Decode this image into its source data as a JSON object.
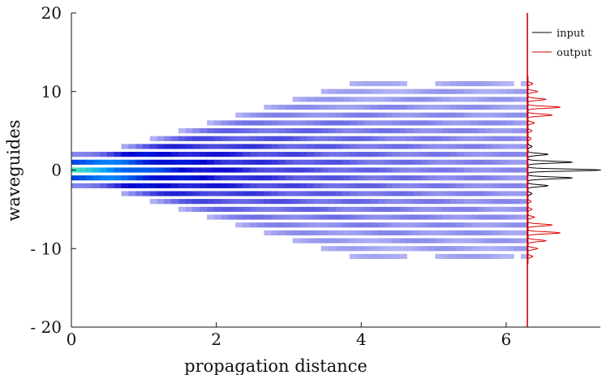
{
  "chart_data": {
    "type": "heatmap",
    "title": "",
    "xlabel": "propagation distance",
    "ylabel": "waveguides",
    "xlim": [
      0,
      7.3
    ],
    "ylim": [
      -20,
      20
    ],
    "x_ticks": [
      {
        "value": 0,
        "label": "0"
      },
      {
        "value": 2,
        "label": "2"
      },
      {
        "value": 4,
        "label": "4"
      },
      {
        "value": 6,
        "label": "6"
      }
    ],
    "y_ticks": [
      {
        "value": 20,
        "label": "20"
      },
      {
        "value": 10,
        "label": "10"
      },
      {
        "value": 0,
        "label": "0"
      },
      {
        "value": -10,
        "label": "- 10"
      },
      {
        "value": -20,
        "label": "- 20"
      }
    ],
    "heatmap": {
      "waveguide_range": [
        -11,
        11
      ],
      "distance_range": [
        0,
        6.3
      ],
      "colormap": [
        "#ffffff",
        "#c8c8f8",
        "#0000d0",
        "#00a0ff",
        "#40e0c0",
        "#f0f000",
        "#ff2020"
      ],
      "peak_intensity": 1.0
    },
    "output_position": 6.3,
    "series": [
      {
        "name": "input",
        "color": "#000000",
        "profile": [
          {
            "waveguide": -3,
            "amplitude": 0.05
          },
          {
            "waveguide": -2,
            "amplitude": 0.25
          },
          {
            "waveguide": -1,
            "amplitude": 0.55
          },
          {
            "waveguide": 0,
            "amplitude": 0.9
          },
          {
            "waveguide": 1,
            "amplitude": 0.55
          },
          {
            "waveguide": 2,
            "amplitude": 0.25
          },
          {
            "waveguide": 3,
            "amplitude": 0.05
          }
        ]
      },
      {
        "name": "output",
        "color": "#e00000",
        "profile": [
          {
            "waveguide": -11,
            "amplitude": 0.06
          },
          {
            "waveguide": -10,
            "amplitude": 0.12
          },
          {
            "waveguide": -9,
            "amplitude": 0.22
          },
          {
            "waveguide": -8,
            "amplitude": 0.4
          },
          {
            "waveguide": -7,
            "amplitude": 0.3
          },
          {
            "waveguide": -6,
            "amplitude": 0.08
          },
          {
            "waveguide": -5,
            "amplitude": 0.05
          },
          {
            "waveguide": -4,
            "amplitude": 0.04
          },
          {
            "waveguide": 4,
            "amplitude": 0.04
          },
          {
            "waveguide": 5,
            "amplitude": 0.05
          },
          {
            "waveguide": 6,
            "amplitude": 0.08
          },
          {
            "waveguide": 7,
            "amplitude": 0.3
          },
          {
            "waveguide": 8,
            "amplitude": 0.4
          },
          {
            "waveguide": 9,
            "amplitude": 0.22
          },
          {
            "waveguide": 10,
            "amplitude": 0.12
          },
          {
            "waveguide": 11,
            "amplitude": 0.06
          }
        ]
      }
    ],
    "legend": "top-right",
    "grid": false
  }
}
